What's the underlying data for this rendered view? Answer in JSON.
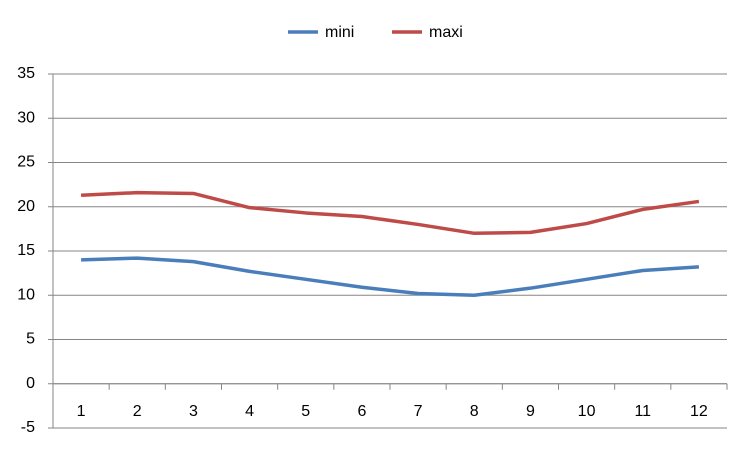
{
  "chart_data": {
    "type": "line",
    "categories": [
      "1",
      "2",
      "3",
      "4",
      "5",
      "6",
      "7",
      "8",
      "9",
      "10",
      "11",
      "12"
    ],
    "series": [
      {
        "name": "mini",
        "color": "#4a7ebb",
        "values": [
          14.0,
          14.2,
          13.8,
          12.7,
          11.8,
          10.9,
          10.2,
          10.0,
          10.8,
          11.8,
          12.8,
          13.2
        ]
      },
      {
        "name": "maxi",
        "color": "#be4b48",
        "values": [
          21.3,
          21.6,
          21.5,
          19.9,
          19.3,
          18.9,
          18.0,
          17.0,
          17.1,
          18.1,
          19.7,
          20.6
        ]
      }
    ],
    "ylim": [
      -5,
      35
    ],
    "yticks": [
      -5,
      0,
      5,
      10,
      15,
      20,
      25,
      30,
      35
    ],
    "grid": true,
    "legend": "top"
  }
}
